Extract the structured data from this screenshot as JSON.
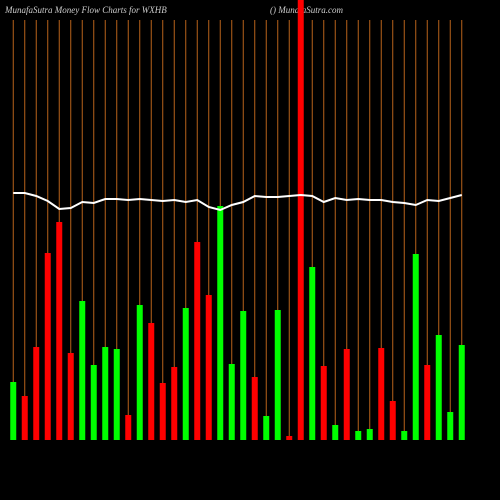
{
  "chart_data": {
    "type": "bar",
    "title": "MunafaSutra  Money Flow  Charts for WXHB",
    "subtitle": "() MunafaSutra.com",
    "categories": [
      null,
      null,
      null,
      null,
      null,
      null,
      null,
      null,
      null,
      null,
      null,
      null,
      null,
      null,
      null,
      null,
      null,
      null,
      null,
      null,
      null,
      null,
      null,
      null,
      null,
      null,
      null,
      null,
      null,
      null,
      null,
      null,
      null,
      null,
      null,
      null,
      null,
      null,
      null,
      null
    ],
    "values": [
      58,
      44,
      93,
      187,
      218,
      87,
      139,
      75,
      93,
      91,
      25,
      135,
      117,
      57,
      73,
      132,
      198,
      145,
      234,
      76,
      129,
      63,
      24,
      130,
      4,
      440,
      173,
      74,
      15,
      91,
      9,
      11,
      92,
      39,
      9,
      186,
      75,
      105,
      28,
      95
    ],
    "bar_colors": [
      "#00ff00",
      "#ff0000",
      "#ff0000",
      "#ff0000",
      "#ff0000",
      "#ff0000",
      "#00ff00",
      "#00ff00",
      "#00ff00",
      "#00ff00",
      "#ff0000",
      "#00ff00",
      "#ff0000",
      "#ff0000",
      "#ff0000",
      "#00ff00",
      "#ff0000",
      "#ff0000",
      "#00ff00",
      "#00ff00",
      "#00ff00",
      "#ff0000",
      "#00ff00",
      "#00ff00",
      "#ff0000",
      "#ff0000",
      "#00ff00",
      "#ff0000",
      "#00ff00",
      "#ff0000",
      "#00ff00",
      "#00ff00",
      "#ff0000",
      "#ff0000",
      "#00ff00",
      "#00ff00",
      "#ff0000",
      "#00ff00",
      "#00ff00",
      "#00ff00"
    ],
    "line": {
      "color": "#ffffff",
      "values": [
        247,
        247,
        244,
        239,
        231,
        232,
        238,
        237,
        241,
        241,
        240,
        241,
        240,
        239,
        240,
        238,
        240,
        233,
        230,
        235,
        238,
        244,
        243,
        243,
        244,
        245,
        244,
        238,
        242,
        240,
        241,
        240,
        240,
        238,
        237,
        235,
        240,
        239,
        242,
        245
      ]
    },
    "gridline_color": "#b8621a",
    "ylim": [
      0,
      440
    ]
  }
}
